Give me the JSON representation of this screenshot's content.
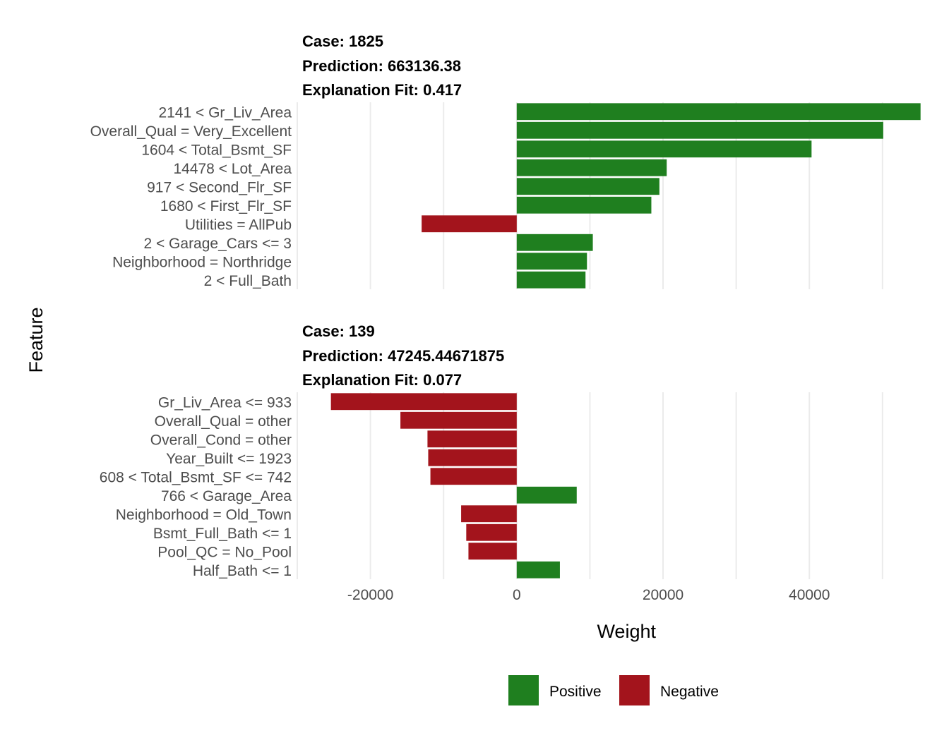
{
  "chart_data": {
    "type": "bar",
    "orientation": "horizontal",
    "xlabel": "Weight",
    "ylabel": "Feature",
    "xlim": [
      -30000,
      56000
    ],
    "x_ticks": [
      -20000,
      0,
      20000,
      40000
    ],
    "x_tick_labels": [
      "-20000",
      "0",
      "20000",
      "40000"
    ],
    "grid": true,
    "legend": {
      "position": "bottom",
      "entries": [
        {
          "label": "Positive",
          "color": "#1f7f1f"
        },
        {
          "label": "Negative",
          "color": "#a3141c"
        }
      ]
    },
    "panels": [
      {
        "title_lines": [
          "Case: 1825",
          "Prediction: 663136.38",
          "Explanation Fit: 0.417"
        ],
        "categories": [
          "2141 < Gr_Liv_Area",
          "Overall_Qual = Very_Excellent",
          "1604 < Total_Bsmt_SF",
          "14478 < Lot_Area",
          "917 < Second_Flr_SF",
          "1680 < First_Flr_SF",
          "Utilities = AllPub",
          "2 < Garage_Cars <= 3",
          "Neighborhood = Northridge",
          "2 < Full_Bath"
        ],
        "values": [
          55200,
          50100,
          40300,
          20500,
          19500,
          18400,
          -13000,
          10400,
          9600,
          9400
        ]
      },
      {
        "title_lines": [
          "Case: 139",
          "Prediction: 47245.44671875",
          "Explanation Fit: 0.077"
        ],
        "categories": [
          "Gr_Liv_Area <= 933",
          "Overall_Qual = other",
          "Overall_Cond = other",
          "Year_Built <= 1923",
          "608 < Total_Bsmt_SF <= 742",
          "766 < Garage_Area",
          "Neighborhood = Old_Town",
          "Bsmt_Full_Bath <= 1",
          "Pool_QC = No_Pool",
          "Half_Bath <= 1"
        ],
        "values": [
          -25400,
          -15900,
          -12200,
          -12100,
          -11800,
          8200,
          -7600,
          -6900,
          -6600,
          5900
        ]
      }
    ]
  }
}
